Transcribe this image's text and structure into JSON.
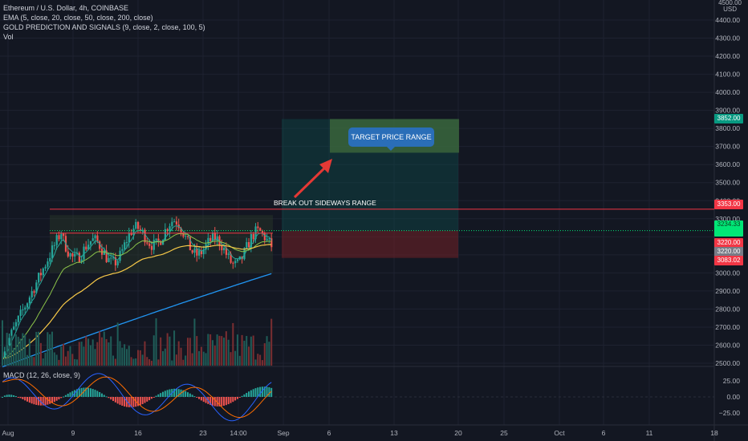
{
  "legend": {
    "symbol": "Ethereum / U.S. Dollar, 4h, COINBASE",
    "ema": "EMA (5, close, 20, close, 50, close, 200, close)",
    "gold": "GOLD PREDICTION AND SIGNALS (9, close, 2, close, 100, 5)",
    "vol": "Vol"
  },
  "macd_legend": "MACD (12, 26, close, 9)",
  "currency": {
    "top": "4500.00",
    "label": "USD"
  },
  "price_axis": [
    "4400.00",
    "4300.00",
    "4200.00",
    "4100.00",
    "4000.00",
    "3900.00",
    "3800.00",
    "3700.00",
    "3600.00",
    "3500.00",
    "3400.00",
    "3300.00",
    "3000.00",
    "2900.00",
    "2800.00",
    "2700.00",
    "2600.00",
    "2500.00"
  ],
  "macd_axis": [
    "25.00",
    "0.00",
    "−25.00"
  ],
  "time_axis": [
    "Aug",
    "9",
    "16",
    "23",
    "14:00",
    "Sep",
    "6",
    "13",
    "20",
    "25",
    "Oct",
    "6",
    "11",
    "18"
  ],
  "price_tags": [
    {
      "label": "3852.00",
      "color": "#089981"
    },
    {
      "label": "3353.00",
      "color": "#f23645"
    },
    {
      "label": "3234.33",
      "color": "#00e676"
    },
    {
      "label": "3220.00",
      "color": "#f23645"
    },
    {
      "label": "3220.00",
      "color": "#787b86"
    },
    {
      "label": "3083.02",
      "color": "#f23645"
    }
  ],
  "annotations": {
    "target": "TARGET PRICE RANGE",
    "breakout": "BREAK OUT SIDEWAYS RANGE"
  },
  "colors": {
    "background": "#131722",
    "up": "#26a69a",
    "down": "#ef5350",
    "ema_fast": "#f7c948",
    "ema_slow": "#2196f3",
    "resistance": "#f23645"
  }
}
